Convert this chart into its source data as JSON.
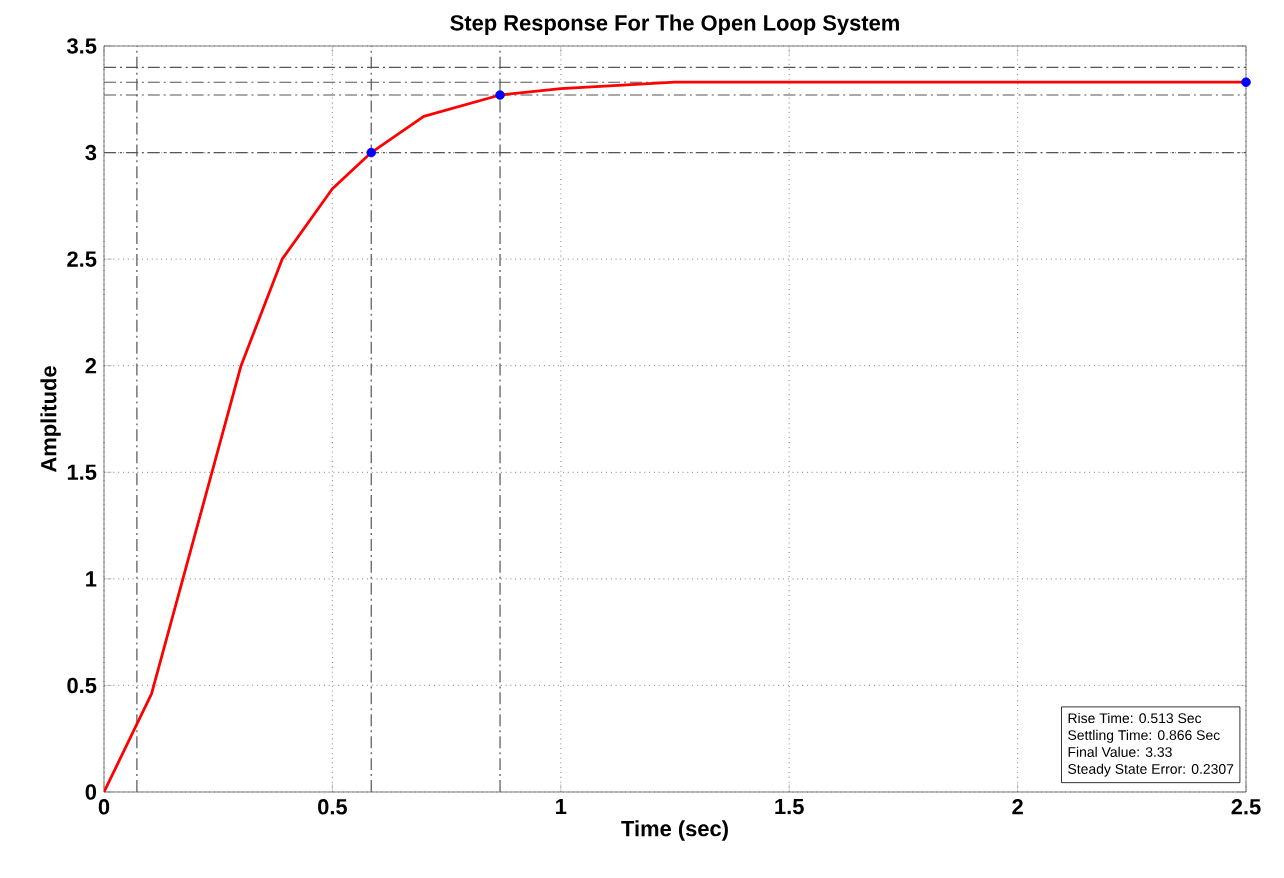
{
  "chart_data": {
    "type": "line",
    "title": "Step Response For The Open Loop System",
    "xlabel": "Time (sec)",
    "ylabel": "Amplitude",
    "xlim": [
      0,
      2.5
    ],
    "ylim": [
      0,
      3.5
    ],
    "xticks": [
      0,
      0.5,
      1,
      1.5,
      2,
      2.5
    ],
    "yticks": [
      0,
      0.5,
      1,
      1.5,
      2,
      2.5,
      3,
      3.5
    ],
    "grid": true,
    "series": [
      {
        "color": "#ff0000",
        "x": [
          0,
          0.104,
          0.3,
          0.39,
          0.5,
          0.585,
          0.7,
          0.867,
          1.0,
          1.25,
          2.5
        ],
        "values": [
          0,
          0.46,
          2.0,
          2.5,
          2.83,
          3.0,
          3.17,
          3.27,
          3.3,
          3.33,
          3.33
        ]
      },
      {
        "type": "scatter",
        "marker": "circle",
        "color": "#0000ff",
        "x": [
          0.585,
          0.867,
          2.5
        ],
        "values": [
          3.0,
          3.27,
          3.33
        ]
      }
    ],
    "ref_lines": [
      {
        "axis": "y",
        "value": 3.4,
        "line_style": "dashed",
        "color": "#555555"
      },
      {
        "axis": "y",
        "value": 3.33,
        "line_style": "dashed",
        "color": "#555555"
      },
      {
        "axis": "y",
        "value": 3.27,
        "line_style": "dashed",
        "color": "#555555"
      },
      {
        "axis": "y",
        "value": 3.0,
        "line_style": "dashed",
        "color": "#555555"
      },
      {
        "axis": "x",
        "value": 0.072,
        "line_style": "dashed",
        "color": "#555555"
      },
      {
        "axis": "x",
        "value": 0.585,
        "line_style": "dashed",
        "color": "#555555"
      },
      {
        "axis": "x",
        "value": 0.867,
        "line_style": "dashed",
        "color": "#555555"
      }
    ],
    "annotations": [
      "Rise Time: 0.513 Sec",
      "Settling Time: 0.866 Sec",
      "Final Value: 3.33",
      "Steady State Error: 0.2307"
    ]
  }
}
